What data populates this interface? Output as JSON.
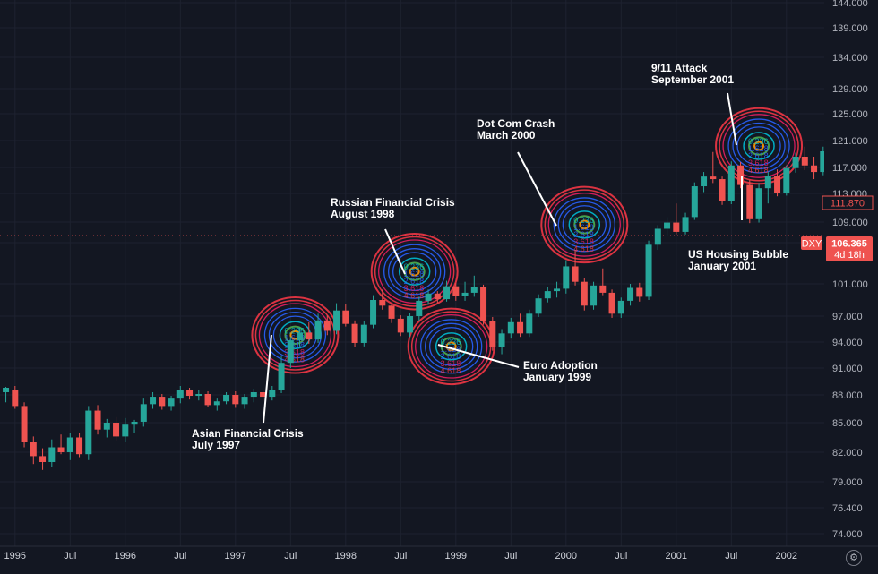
{
  "colors": {
    "background": "#131722",
    "grid": "#1e2230",
    "up": "#26a69a",
    "down": "#ef5350",
    "axis_text": "#b2b5be",
    "last_line": "#ef5350",
    "ring_red": "#f23645",
    "ring_pink": "#e91e63",
    "ring_blue": "#2962ff",
    "ring_cyan": "#00bcd4",
    "ring_green": "#4caf50",
    "ring_orange": "#ff9800",
    "annotation": "#ffffff"
  },
  "symbol": "DXY",
  "price_badges": {
    "last_close": "111.870",
    "current": "106.365",
    "countdown": "4d 18h"
  },
  "settings_icon": "gear-icon",
  "chart_data": {
    "type": "candlestick",
    "interval": "monthly",
    "y_axis_labels": [
      "144.000",
      "139.000",
      "134.000",
      "129.000",
      "125.000",
      "121.000",
      "117.000",
      "113.000",
      "109.000",
      "105.000",
      "101.000",
      "97.000",
      "94.000",
      "91.000",
      "88.000",
      "85.000",
      "82.000",
      "79.000",
      "76.400",
      "74.000"
    ],
    "y_ticks": [
      144,
      139,
      134,
      129,
      125,
      121,
      117,
      113,
      109,
      105,
      101,
      97,
      94,
      91,
      88,
      85,
      82,
      79,
      76.4,
      74
    ],
    "x_axis_labels": [
      "1995",
      "Jul",
      "1996",
      "Jul",
      "1997",
      "Jul",
      "1998",
      "Jul",
      "1999",
      "Jul",
      "2000",
      "Jul",
      "2001",
      "Jul",
      "2002"
    ],
    "x_tick_months": [
      0,
      6,
      12,
      18,
      24,
      30,
      36,
      42,
      48,
      54,
      60,
      66,
      72,
      78,
      84
    ],
    "start": "1994-10",
    "current_price": 106.365,
    "last_close": 111.87,
    "candles": [
      [
        89.0,
        89.8,
        88.5,
        89.2
      ],
      [
        89.2,
        89.8,
        88.0,
        88.3
      ],
      [
        88.3,
        88.9,
        87.2,
        88.8
      ],
      [
        88.5,
        89.0,
        86.5,
        86.8
      ],
      [
        86.8,
        87.2,
        82.5,
        83.0
      ],
      [
        83.0,
        83.6,
        80.8,
        81.6
      ],
      [
        81.6,
        82.4,
        80.2,
        81.0
      ],
      [
        81.0,
        83.3,
        80.5,
        82.5
      ],
      [
        82.5,
        83.8,
        81.8,
        82.0
      ],
      [
        82.0,
        84.0,
        81.2,
        83.5
      ],
      [
        83.5,
        84.0,
        81.5,
        81.8
      ],
      [
        81.8,
        86.8,
        81.2,
        86.3
      ],
      [
        86.3,
        86.9,
        83.8,
        84.3
      ],
      [
        84.3,
        85.4,
        83.5,
        85.0
      ],
      [
        85.0,
        85.6,
        83.2,
        83.6
      ],
      [
        83.6,
        85.5,
        83.0,
        84.8
      ],
      [
        84.8,
        85.3,
        84.0,
        85.1
      ],
      [
        85.1,
        87.6,
        84.6,
        87.0
      ],
      [
        87.0,
        88.3,
        86.5,
        87.8
      ],
      [
        87.8,
        88.1,
        86.4,
        86.8
      ],
      [
        86.8,
        87.9,
        86.3,
        87.6
      ],
      [
        87.6,
        89.0,
        87.1,
        88.5
      ],
      [
        88.5,
        88.8,
        87.5,
        87.9
      ],
      [
        87.9,
        88.6,
        87.4,
        88.1
      ],
      [
        88.1,
        88.4,
        86.7,
        86.9
      ],
      [
        86.9,
        87.6,
        86.3,
        87.3
      ],
      [
        87.3,
        88.3,
        87.0,
        88.0
      ],
      [
        88.0,
        88.4,
        86.6,
        87.0
      ],
      [
        87.0,
        88.1,
        86.5,
        87.8
      ],
      [
        87.8,
        88.7,
        87.2,
        88.3
      ],
      [
        88.3,
        88.6,
        87.3,
        87.8
      ],
      [
        87.8,
        89.0,
        87.4,
        88.6
      ],
      [
        88.6,
        92.4,
        88.2,
        91.6
      ],
      [
        91.6,
        94.6,
        91.0,
        94.2
      ],
      [
        94.2,
        95.7,
        93.5,
        95.1
      ],
      [
        95.1,
        96.3,
        93.8,
        94.3
      ],
      [
        94.3,
        97.3,
        93.9,
        96.5
      ],
      [
        96.5,
        97.1,
        94.8,
        95.3
      ],
      [
        95.3,
        98.6,
        94.9,
        97.7
      ],
      [
        97.7,
        98.5,
        95.8,
        96.1
      ],
      [
        96.1,
        96.5,
        93.4,
        93.9
      ],
      [
        93.9,
        96.4,
        93.5,
        96.0
      ],
      [
        96.0,
        99.6,
        95.6,
        99.0
      ],
      [
        99.0,
        100.3,
        97.8,
        98.3
      ],
      [
        98.3,
        98.6,
        96.2,
        96.7
      ],
      [
        96.7,
        97.1,
        94.7,
        95.1
      ],
      [
        95.1,
        97.4,
        94.6,
        97.0
      ],
      [
        97.0,
        99.4,
        96.4,
        98.9
      ],
      [
        98.9,
        100.3,
        98.4,
        99.8
      ],
      [
        99.8,
        100.1,
        98.6,
        99.1
      ],
      [
        99.1,
        101.3,
        98.8,
        100.7
      ],
      [
        100.7,
        101.1,
        98.9,
        99.5
      ],
      [
        99.5,
        101.2,
        98.9,
        99.9
      ],
      [
        99.9,
        101.8,
        99.4,
        100.6
      ],
      [
        100.6,
        100.9,
        96.0,
        96.4
      ],
      [
        96.4,
        96.9,
        93.0,
        93.4
      ],
      [
        93.4,
        95.5,
        92.6,
        95.0
      ],
      [
        95.0,
        96.8,
        94.4,
        96.3
      ],
      [
        96.3,
        97.3,
        94.6,
        95.0
      ],
      [
        95.0,
        97.8,
        94.6,
        97.3
      ],
      [
        97.3,
        99.7,
        96.9,
        99.2
      ],
      [
        99.2,
        100.6,
        98.7,
        100.1
      ],
      [
        100.1,
        101.2,
        99.3,
        100.4
      ],
      [
        100.4,
        103.3,
        99.8,
        102.7
      ],
      [
        102.7,
        104.3,
        100.8,
        101.2
      ],
      [
        101.2,
        101.6,
        97.7,
        98.3
      ],
      [
        98.3,
        101.2,
        97.8,
        100.8
      ],
      [
        100.8,
        102.5,
        99.6,
        99.9
      ],
      [
        99.9,
        100.3,
        96.8,
        97.3
      ],
      [
        97.3,
        99.3,
        96.8,
        98.9
      ],
      [
        98.9,
        101.0,
        98.3,
        100.5
      ],
      [
        100.5,
        101.1,
        98.8,
        99.4
      ],
      [
        99.4,
        105.4,
        99.0,
        104.8
      ],
      [
        104.8,
        108.4,
        104.3,
        107.7
      ],
      [
        107.7,
        109.7,
        106.3,
        108.9
      ],
      [
        108.9,
        111.6,
        106.6,
        107.1
      ],
      [
        107.1,
        110.3,
        106.6,
        109.7
      ],
      [
        109.7,
        114.7,
        109.3,
        114.1
      ],
      [
        114.1,
        116.3,
        113.2,
        115.6
      ],
      [
        115.6,
        119.3,
        114.6,
        115.2
      ],
      [
        115.2,
        115.6,
        111.4,
        112.0
      ],
      [
        112.0,
        117.9,
        111.5,
        117.3
      ],
      [
        117.3,
        117.8,
        113.8,
        114.3
      ],
      [
        114.3,
        115.1,
        108.8,
        109.4
      ],
      [
        109.4,
        114.6,
        108.9,
        113.8
      ],
      [
        113.8,
        116.3,
        111.6,
        115.7
      ],
      [
        115.7,
        116.7,
        112.6,
        113.1
      ],
      [
        113.1,
        117.3,
        112.7,
        116.9
      ],
      [
        116.9,
        119.2,
        116.2,
        118.6
      ],
      [
        118.6,
        120.1,
        116.6,
        117.3
      ],
      [
        117.3,
        118.6,
        115.2,
        116.3
      ],
      [
        116.3,
        120.1,
        115.8,
        119.4
      ],
      [
        119.4,
        120.9,
        116.8,
        117.3
      ],
      [
        117.3,
        117.7,
        112.2,
        112.8
      ],
      [
        112.8,
        116.5,
        112.4,
        116.0
      ],
      [
        116.0,
        117.3,
        113.8,
        114.3
      ],
      [
        114.3,
        116.2,
        113.2,
        115.7
      ],
      [
        115.7,
        117.6,
        114.9,
        116.8
      ],
      [
        116.8,
        117.3,
        115.2,
        116.1
      ],
      [
        116.1,
        120.7,
        115.7,
        120.1
      ],
      [
        120.1,
        120.8,
        117.8,
        120.4
      ],
      [
        120.4,
        120.8,
        118.3,
        119.6
      ],
      [
        119.6,
        120.3,
        118.6,
        119.0
      ],
      [
        119.0,
        119.9,
        114.7,
        115.2
      ],
      [
        115.2,
        115.7,
        111.5,
        111.87
      ]
    ],
    "annotations": [
      {
        "label_lines": [
          "Asian Financial Crisis",
          "July 1997"
        ],
        "month": 33.5,
        "price": 94.8
      },
      {
        "label_lines": [
          "Russian Financial Crisis",
          "August 1998"
        ],
        "month": 46.5,
        "price": 102.2
      },
      {
        "label_lines": [
          "Euro Adoption",
          "January 1999"
        ],
        "month": 50.5,
        "price": 93.5
      },
      {
        "label_lines": [
          "Dot Com Crash",
          "March 2000"
        ],
        "month": 65,
        "price": 108.5
      },
      {
        "label_lines": [
          "9/11 Attack",
          "September 2001"
        ],
        "month": 84,
        "price": 120.2
      },
      {
        "label_lines": [
          "US Housing Bubble",
          "January 2001"
        ],
        "month": 84.5,
        "price": 109.5
      }
    ],
    "fib_levels": [
      "0.236",
      "1.618",
      "2.618",
      "3.618",
      "4.618"
    ]
  }
}
